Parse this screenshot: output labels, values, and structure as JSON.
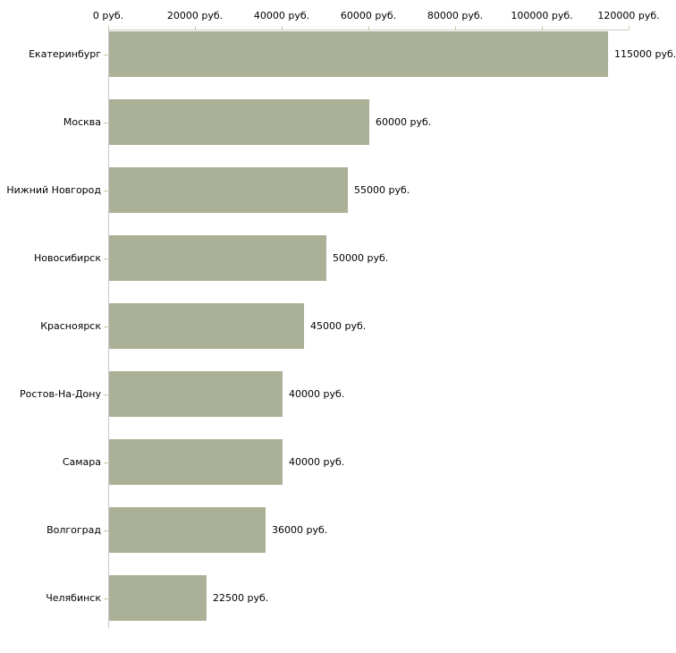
{
  "chart_data": {
    "type": "bar",
    "orientation": "horizontal",
    "title": "",
    "xlabel": "",
    "ylabel": "",
    "xlim": [
      0,
      120000
    ],
    "grid": false,
    "legend": null,
    "categories": [
      "Екатеринбург",
      "Москва",
      "Нижний Новгород",
      "Новосибирск",
      "Красноярск",
      "Ростов-На-Дону",
      "Самара",
      "Волгоград",
      "Челябинск"
    ],
    "values": [
      115000,
      60000,
      55000,
      50000,
      45000,
      40000,
      40000,
      36000,
      22500
    ],
    "value_labels": [
      "115000 руб.",
      "60000 руб.",
      "55000 руб.",
      "50000 руб.",
      "45000 руб.",
      "40000 руб.",
      "40000 руб.",
      "36000 руб.",
      "22500 руб."
    ],
    "x_tick_values": [
      0,
      20000,
      40000,
      60000,
      80000,
      100000,
      120000
    ],
    "x_tick_labels": [
      "0 руб.",
      "20000 руб.",
      "40000 руб.",
      "60000 руб.",
      "80000 руб.",
      "100000 руб.",
      "120000 руб."
    ]
  },
  "colors": {
    "bar": "#abb197",
    "axis": "#c8c8c8",
    "tick": "#c8c8a0",
    "text": "#000000",
    "background": "#ffffff"
  }
}
